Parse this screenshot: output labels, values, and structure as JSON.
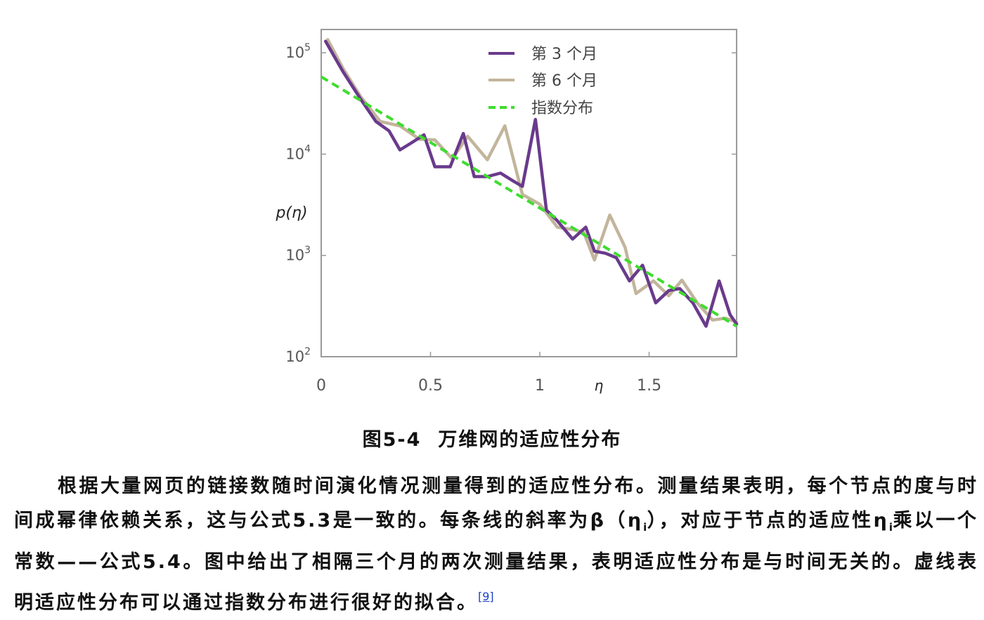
{
  "chart_data": {
    "type": "line",
    "x_scale": "linear",
    "y_scale": "log",
    "xlim": [
      0,
      1.9
    ],
    "ylim": [
      100,
      170000
    ],
    "ylabel": "p(η)",
    "xlabel": "η",
    "x_ticks": [
      "0",
      "0.5",
      "1",
      "1.5"
    ],
    "x_tick_values": [
      0,
      0.5,
      1,
      1.5
    ],
    "y_ticks": [
      {
        "base": "10",
        "exp": "2",
        "value": 100
      },
      {
        "base": "10",
        "exp": "3",
        "value": 1000
      },
      {
        "base": "10",
        "exp": "4",
        "value": 10000
      },
      {
        "base": "10",
        "exp": "5",
        "value": 100000
      }
    ],
    "legend_position": "top-center",
    "series": [
      {
        "name": "第 3 个月",
        "color": "#6a3a8c",
        "style": "solid",
        "points": [
          [
            0.02,
            130000
          ],
          [
            0.1,
            65000
          ],
          [
            0.18,
            35000
          ],
          [
            0.25,
            21000
          ],
          [
            0.31,
            17000
          ],
          [
            0.36,
            11000
          ],
          [
            0.41,
            12800
          ],
          [
            0.47,
            15500
          ],
          [
            0.52,
            7500
          ],
          [
            0.59,
            7500
          ],
          [
            0.65,
            16000
          ],
          [
            0.7,
            6000
          ],
          [
            0.76,
            6000
          ],
          [
            0.82,
            6500
          ],
          [
            0.88,
            5400
          ],
          [
            0.92,
            4800
          ],
          [
            0.98,
            22000
          ],
          [
            1.03,
            2800
          ],
          [
            1.08,
            2200
          ],
          [
            1.15,
            1450
          ],
          [
            1.21,
            1900
          ],
          [
            1.25,
            1100
          ],
          [
            1.3,
            1050
          ],
          [
            1.35,
            950
          ],
          [
            1.41,
            560
          ],
          [
            1.47,
            800
          ],
          [
            1.53,
            340
          ],
          [
            1.59,
            450
          ],
          [
            1.64,
            470
          ],
          [
            1.7,
            340
          ],
          [
            1.76,
            200
          ],
          [
            1.82,
            560
          ],
          [
            1.87,
            260
          ],
          [
            1.9,
            210
          ]
        ]
      },
      {
        "name": "第 6 个月",
        "color": "#c2b59c",
        "style": "solid",
        "points": [
          [
            0.03,
            135000
          ],
          [
            0.1,
            70000
          ],
          [
            0.18,
            37000
          ],
          [
            0.27,
            21000
          ],
          [
            0.36,
            19000
          ],
          [
            0.45,
            14000
          ],
          [
            0.52,
            13800
          ],
          [
            0.6,
            9000
          ],
          [
            0.67,
            15000
          ],
          [
            0.76,
            8800
          ],
          [
            0.84,
            19000
          ],
          [
            0.92,
            4000
          ],
          [
            1.0,
            3200
          ],
          [
            1.08,
            1900
          ],
          [
            1.15,
            1800
          ],
          [
            1.2,
            1700
          ],
          [
            1.25,
            900
          ],
          [
            1.32,
            2500
          ],
          [
            1.39,
            1200
          ],
          [
            1.44,
            420
          ],
          [
            1.52,
            560
          ],
          [
            1.59,
            400
          ],
          [
            1.65,
            570
          ],
          [
            1.72,
            340
          ],
          [
            1.79,
            230
          ],
          [
            1.85,
            240
          ],
          [
            1.9,
            220
          ]
        ]
      },
      {
        "name": "指数分布",
        "color": "#3fdc2e",
        "style": "dashed",
        "points": [
          [
            0,
            58000
          ],
          [
            1.9,
            200
          ]
        ]
      }
    ]
  },
  "caption": {
    "number": "图5-4",
    "title": "万维网的适应性分布"
  },
  "paragraph": {
    "s1": "根据大量网页的链接数随时间演化情况测量得到的适应性分布。测量结果表明，每个节点的度与时间成幂律依赖关系，这与公式5.3是一致的。每条线的斜率为β（η",
    "sub1": "i",
    "s2": "），对应于节点的适应性η",
    "sub2": "i",
    "s3": "乘以一个常数——公式5.4。图中给出了相隔三个月的两次测量结果，表明适应性分布是与时间无关的。虚线表明适应性分布可以通过指数分布进行很好的拟合。",
    "ref": "[9]"
  }
}
